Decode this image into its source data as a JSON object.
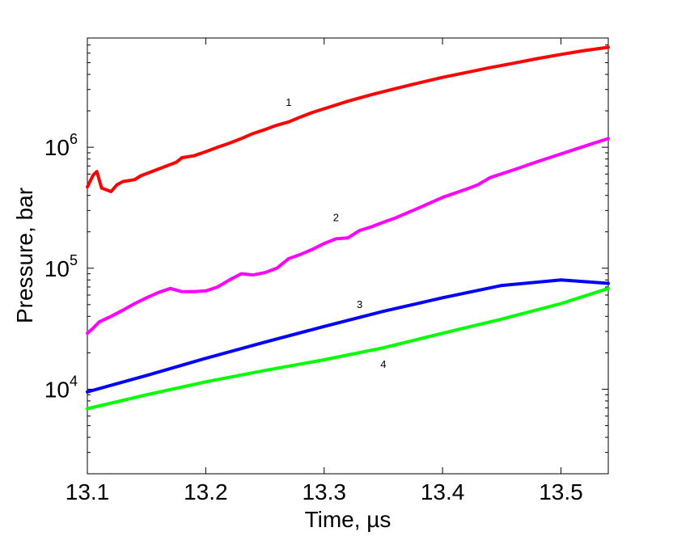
{
  "chart_data": {
    "type": "line",
    "title": "",
    "xlabel": "Time, µs",
    "ylabel": "Pressure, bar",
    "xlim": [
      13.1,
      13.54
    ],
    "ylim": [
      2000,
      8000000
    ],
    "yscale": "log",
    "grid": false,
    "legend": "none",
    "x_ticks": [
      {
        "value": 13.1,
        "label": "13.1"
      },
      {
        "value": 13.2,
        "label": "13.2"
      },
      {
        "value": 13.3,
        "label": "13.3"
      },
      {
        "value": 13.4,
        "label": "13.4"
      },
      {
        "value": 13.5,
        "label": "13.5"
      }
    ],
    "y_ticks": [
      {
        "value": 10000,
        "base": "10",
        "exp": "4"
      },
      {
        "value": 100000,
        "base": "10",
        "exp": "5"
      },
      {
        "value": 1000000,
        "base": "10",
        "exp": "6"
      }
    ],
    "series": [
      {
        "name": "1",
        "color": "#ff0000",
        "label_at": [
          13.27,
          2200000
        ],
        "points": [
          [
            13.1,
            470000
          ],
          [
            13.105,
            590000
          ],
          [
            13.108,
            630000
          ],
          [
            13.112,
            460000
          ],
          [
            13.12,
            430000
          ],
          [
            13.125,
            490000
          ],
          [
            13.13,
            520000
          ],
          [
            13.14,
            540000
          ],
          [
            13.145,
            580000
          ],
          [
            13.16,
            660000
          ],
          [
            13.175,
            750000
          ],
          [
            13.18,
            820000
          ],
          [
            13.19,
            850000
          ],
          [
            13.2,
            920000
          ],
          [
            13.21,
            1000000
          ],
          [
            13.22,
            1080000
          ],
          [
            13.23,
            1180000
          ],
          [
            13.24,
            1300000
          ],
          [
            13.25,
            1400000
          ],
          [
            13.26,
            1520000
          ],
          [
            13.27,
            1620000
          ],
          [
            13.28,
            1780000
          ],
          [
            13.29,
            1940000
          ],
          [
            13.3,
            2080000
          ],
          [
            13.32,
            2400000
          ],
          [
            13.34,
            2720000
          ],
          [
            13.36,
            3050000
          ],
          [
            13.38,
            3400000
          ],
          [
            13.4,
            3780000
          ],
          [
            13.42,
            4150000
          ],
          [
            13.44,
            4550000
          ],
          [
            13.46,
            4950000
          ],
          [
            13.48,
            5400000
          ],
          [
            13.5,
            5850000
          ],
          [
            13.52,
            6300000
          ],
          [
            13.54,
            6700000
          ]
        ]
      },
      {
        "name": "2",
        "color": "#ff00ff",
        "label_at": [
          13.31,
          245000
        ],
        "points": [
          [
            13.1,
            29000
          ],
          [
            13.105,
            32000
          ],
          [
            13.11,
            36000
          ],
          [
            13.12,
            40000
          ],
          [
            13.13,
            45000
          ],
          [
            13.14,
            51000
          ],
          [
            13.15,
            57000
          ],
          [
            13.16,
            63000
          ],
          [
            13.17,
            68000
          ],
          [
            13.18,
            64000
          ],
          [
            13.19,
            64000
          ],
          [
            13.2,
            65000
          ],
          [
            13.21,
            70000
          ],
          [
            13.22,
            80000
          ],
          [
            13.23,
            90000
          ],
          [
            13.24,
            88000
          ],
          [
            13.25,
            92000
          ],
          [
            13.26,
            100000
          ],
          [
            13.27,
            120000
          ],
          [
            13.28,
            130000
          ],
          [
            13.29,
            143000
          ],
          [
            13.3,
            160000
          ],
          [
            13.31,
            175000
          ],
          [
            13.32,
            178000
          ],
          [
            13.33,
            205000
          ],
          [
            13.34,
            220000
          ],
          [
            13.35,
            240000
          ],
          [
            13.36,
            260000
          ],
          [
            13.38,
            315000
          ],
          [
            13.4,
            385000
          ],
          [
            13.42,
            450000
          ],
          [
            13.43,
            490000
          ],
          [
            13.44,
            560000
          ],
          [
            13.46,
            650000
          ],
          [
            13.48,
            760000
          ],
          [
            13.5,
            880000
          ],
          [
            13.52,
            1020000
          ],
          [
            13.54,
            1180000
          ]
        ]
      },
      {
        "name": "3",
        "color": "#0000ff",
        "label_at": [
          13.33,
          47000
        ],
        "points": [
          [
            13.1,
            9500
          ],
          [
            13.15,
            13000
          ],
          [
            13.2,
            18000
          ],
          [
            13.25,
            24500
          ],
          [
            13.3,
            33000
          ],
          [
            13.35,
            44000
          ],
          [
            13.4,
            57000
          ],
          [
            13.45,
            72000
          ],
          [
            13.5,
            80000
          ],
          [
            13.54,
            75000
          ]
        ]
      },
      {
        "name": "4",
        "color": "#00ff00",
        "label_at": [
          13.35,
          15000
        ],
        "points": [
          [
            13.1,
            6900
          ],
          [
            13.15,
            9000
          ],
          [
            13.2,
            11500
          ],
          [
            13.25,
            14300
          ],
          [
            13.3,
            17500
          ],
          [
            13.35,
            22000
          ],
          [
            13.4,
            29000
          ],
          [
            13.45,
            38000
          ],
          [
            13.5,
            51000
          ],
          [
            13.54,
            68000
          ]
        ]
      }
    ]
  }
}
